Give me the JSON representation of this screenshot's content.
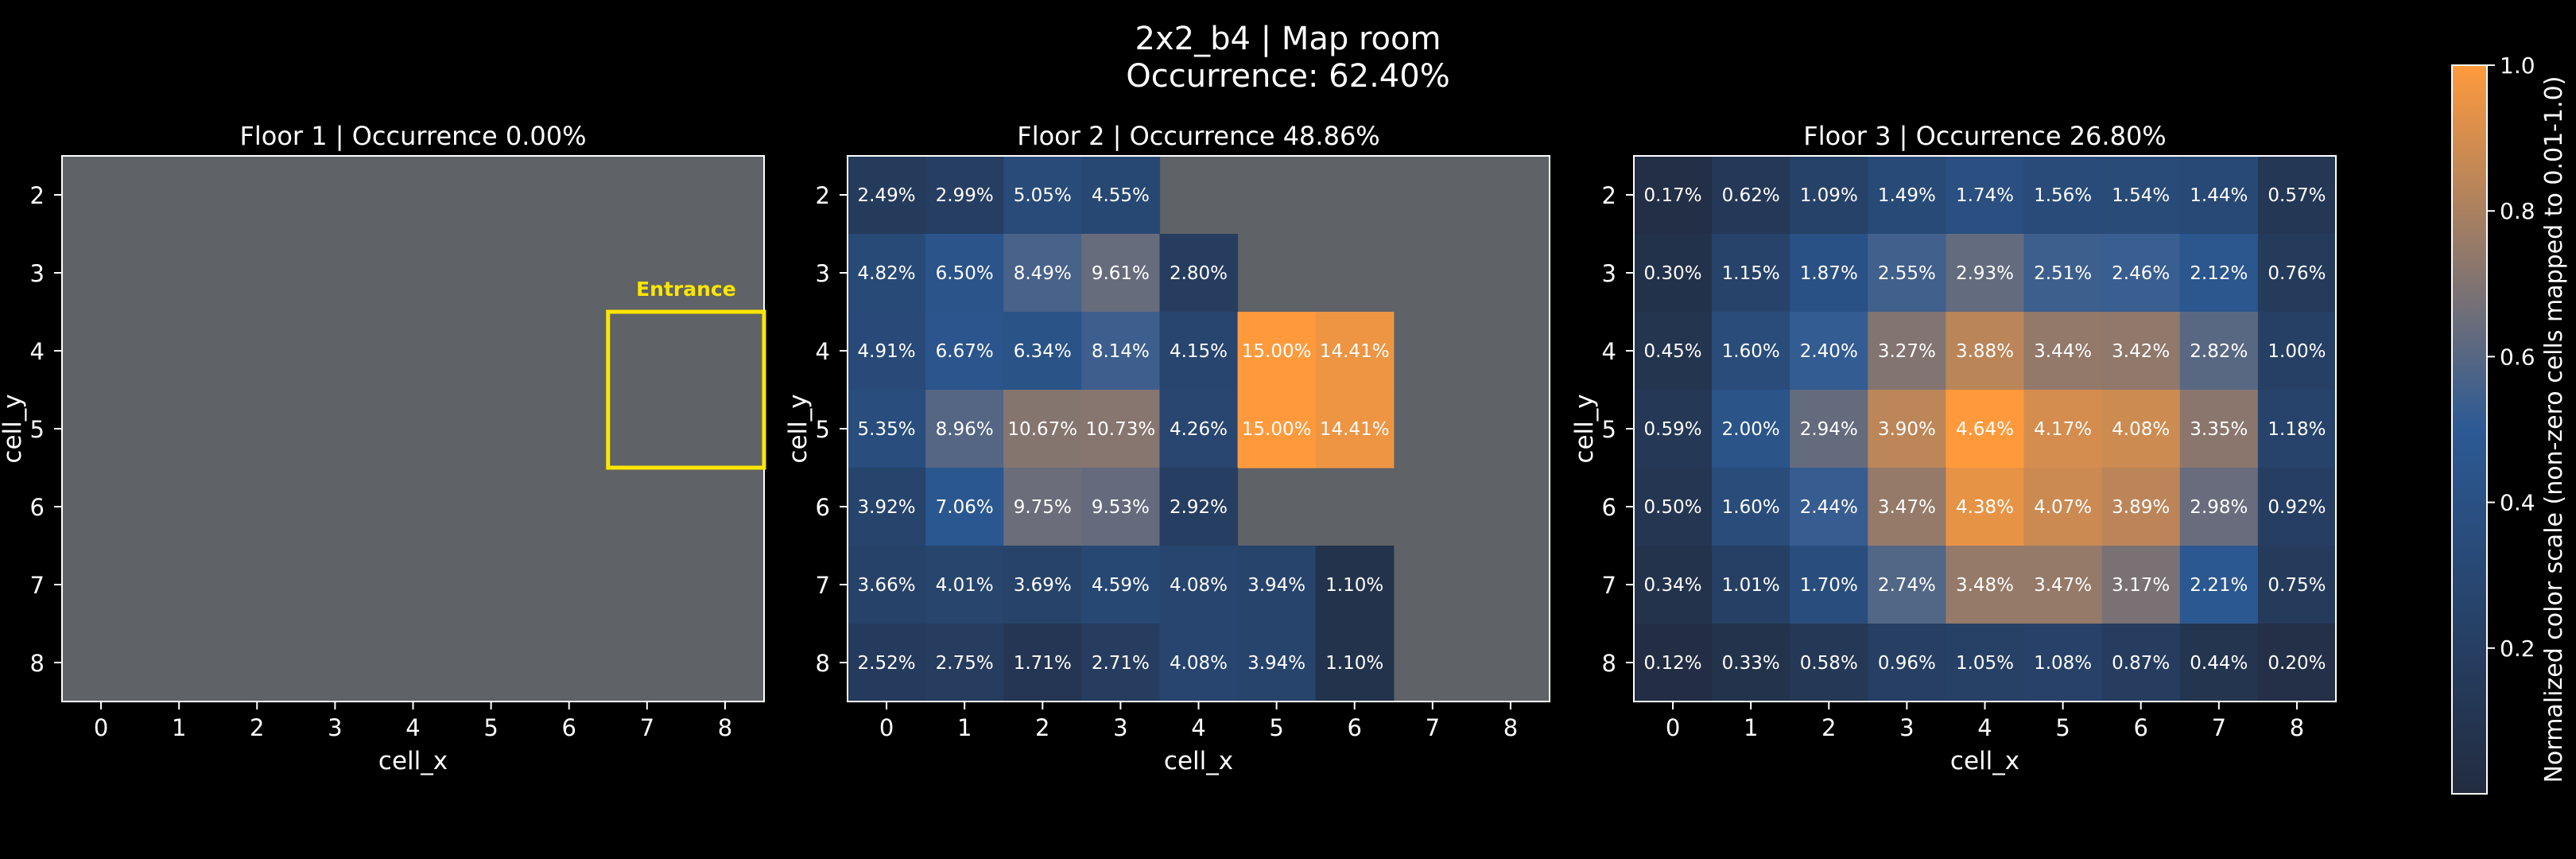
{
  "figure": {
    "title_line1": "2x2_b4 | Map room",
    "title_line2": "Occurrence: 62.40%"
  },
  "colors": {
    "background": "#000000",
    "no_data": "#5f6266",
    "low": "#222c40",
    "mid": "#2c5a95",
    "high": "#ff9a3c",
    "entrance": "#ffe600",
    "text": "#ffffff"
  },
  "chart_data": [
    {
      "type": "heatmap",
      "title": "Floor 1 | Occurrence 0.00%",
      "xlabel": "cell_x",
      "ylabel": "cell_y",
      "x": [
        0,
        1,
        2,
        3,
        4,
        5,
        6,
        7,
        8
      ],
      "y": [
        2,
        3,
        4,
        5,
        6,
        7,
        8
      ],
      "values": [
        [
          null,
          null,
          null,
          null,
          null,
          null,
          null,
          null,
          null
        ],
        [
          null,
          null,
          null,
          null,
          null,
          null,
          null,
          null,
          null
        ],
        [
          null,
          null,
          null,
          null,
          null,
          null,
          null,
          null,
          null
        ],
        [
          null,
          null,
          null,
          null,
          null,
          null,
          null,
          null,
          null
        ],
        [
          null,
          null,
          null,
          null,
          null,
          null,
          null,
          null,
          null
        ],
        [
          null,
          null,
          null,
          null,
          null,
          null,
          null,
          null,
          null
        ],
        [
          null,
          null,
          null,
          null,
          null,
          null,
          null,
          null,
          null
        ]
      ],
      "annotation": {
        "label": "Entrance",
        "x_range": [
          7,
          8
        ],
        "y_range": [
          4,
          5
        ]
      }
    },
    {
      "type": "heatmap",
      "title": "Floor 2 | Occurrence 48.86%",
      "xlabel": "cell_x",
      "ylabel": "cell_y",
      "x": [
        0,
        1,
        2,
        3,
        4,
        5,
        6,
        7,
        8
      ],
      "y": [
        2,
        3,
        4,
        5,
        6,
        7,
        8
      ],
      "values": [
        [
          2.49,
          2.99,
          5.05,
          4.55,
          null,
          null,
          null,
          null,
          null
        ],
        [
          4.82,
          6.5,
          8.49,
          9.61,
          2.8,
          null,
          null,
          null,
          null
        ],
        [
          4.91,
          6.67,
          6.34,
          8.14,
          4.15,
          15.0,
          14.41,
          null,
          null
        ],
        [
          5.35,
          8.96,
          10.67,
          10.73,
          4.26,
          15.0,
          14.41,
          null,
          null
        ],
        [
          3.92,
          7.06,
          9.75,
          9.53,
          2.92,
          null,
          null,
          null,
          null
        ],
        [
          3.66,
          4.01,
          3.69,
          4.59,
          4.08,
          3.94,
          1.1,
          null,
          null
        ],
        [
          2.52,
          2.75,
          1.71,
          2.71,
          4.08,
          3.94,
          1.1,
          null,
          null
        ]
      ]
    },
    {
      "type": "heatmap",
      "title": "Floor 3 | Occurrence 26.80%",
      "xlabel": "cell_x",
      "ylabel": "cell_y",
      "x": [
        0,
        1,
        2,
        3,
        4,
        5,
        6,
        7,
        8
      ],
      "y": [
        2,
        3,
        4,
        5,
        6,
        7,
        8
      ],
      "values": [
        [
          0.17,
          0.62,
          1.09,
          1.49,
          1.74,
          1.56,
          1.54,
          1.44,
          0.57
        ],
        [
          0.3,
          1.15,
          1.87,
          2.55,
          2.93,
          2.51,
          2.46,
          2.12,
          0.76
        ],
        [
          0.45,
          1.6,
          2.4,
          3.27,
          3.88,
          3.44,
          3.42,
          2.82,
          1.0
        ],
        [
          0.59,
          2.0,
          2.94,
          3.9,
          4.64,
          4.17,
          4.08,
          3.35,
          1.18
        ],
        [
          0.5,
          1.6,
          2.44,
          3.47,
          4.38,
          4.07,
          3.89,
          2.98,
          0.92
        ],
        [
          0.34,
          1.01,
          1.7,
          2.74,
          3.48,
          3.47,
          3.17,
          2.21,
          0.75
        ],
        [
          0.12,
          0.33,
          0.58,
          0.96,
          1.05,
          1.08,
          0.87,
          0.44,
          0.2
        ]
      ]
    }
  ],
  "colorbar": {
    "label": "Normalized color scale (non-zero cells mapped to 0.01-1.0)",
    "range": [
      0,
      1
    ],
    "ticks": [
      0.2,
      0.4,
      0.6,
      0.8,
      1.0
    ],
    "tick_labels": [
      "0.2",
      "0.4",
      "0.6",
      "0.8",
      "1.0"
    ]
  }
}
